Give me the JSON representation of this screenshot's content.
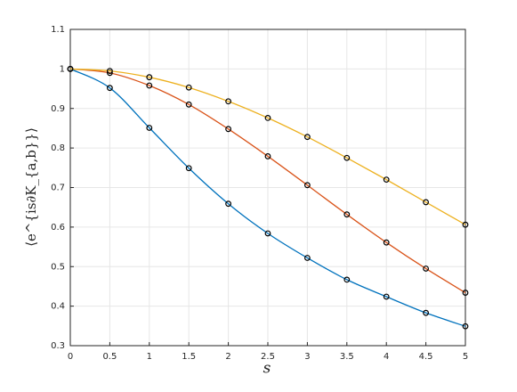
{
  "chart_data": {
    "type": "line",
    "xlabel": "s",
    "ylabel": "⟨e^{is∂K_{a,b}}⟩",
    "x": [
      0,
      0.5,
      1,
      1.5,
      2,
      2.5,
      3,
      3.5,
      4,
      4.5,
      5
    ],
    "series": [
      {
        "color": "#0072bd",
        "values": [
          1,
          0.952,
          0.851,
          0.749,
          0.659,
          0.584,
          0.522,
          0.467,
          0.424,
          0.383,
          0.349
        ]
      },
      {
        "color": "#d95319",
        "values": [
          1,
          0.99,
          0.958,
          0.91,
          0.848,
          0.779,
          0.706,
          0.632,
          0.561,
          0.495,
          0.434
        ]
      },
      {
        "color": "#edb120",
        "values": [
          1,
          0.995,
          0.979,
          0.953,
          0.918,
          0.876,
          0.828,
          0.775,
          0.72,
          0.663,
          0.606
        ]
      }
    ],
    "marker_color": "#000000",
    "xlim": [
      0,
      5
    ],
    "xticks": [
      0,
      0.5,
      1,
      1.5,
      2,
      2.5,
      3,
      3.5,
      4,
      4.5,
      5
    ],
    "ylim": [
      0.3,
      1.1
    ],
    "yticks": [
      0.3,
      0.4,
      0.5,
      0.6,
      0.7,
      0.8,
      0.9,
      1,
      1.1
    ],
    "grid": true
  }
}
